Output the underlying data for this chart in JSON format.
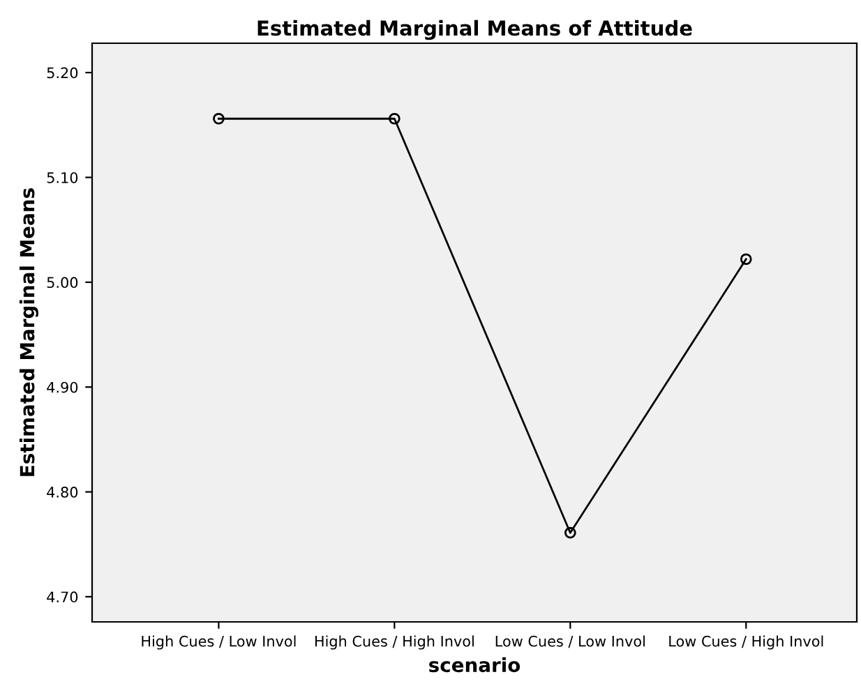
{
  "chart_data": {
    "type": "line",
    "title": "Estimated Marginal Means of Attitude",
    "xlabel": "scenario",
    "ylabel": "Estimated Marginal Means",
    "categories": [
      "High Cues / Low Invol",
      "High Cues / High Invol",
      "Low Cues / Low Invol",
      "Low Cues / High Invol"
    ],
    "values": [
      5.156,
      5.156,
      4.761,
      5.022
    ],
    "color": "#000000",
    "marker": "circle",
    "line_style": "solid",
    "grid": false,
    "legend": false,
    "ylim": [
      4.676,
      5.228
    ],
    "yticks": [
      {
        "value": 4.7,
        "label": "4.70"
      },
      {
        "value": 4.8,
        "label": "4.80"
      },
      {
        "value": 4.9,
        "label": "4.90"
      },
      {
        "value": 5.0,
        "label": "5.00"
      },
      {
        "value": 5.1,
        "label": "5.10"
      },
      {
        "value": 5.2,
        "label": "5.20"
      }
    ]
  }
}
